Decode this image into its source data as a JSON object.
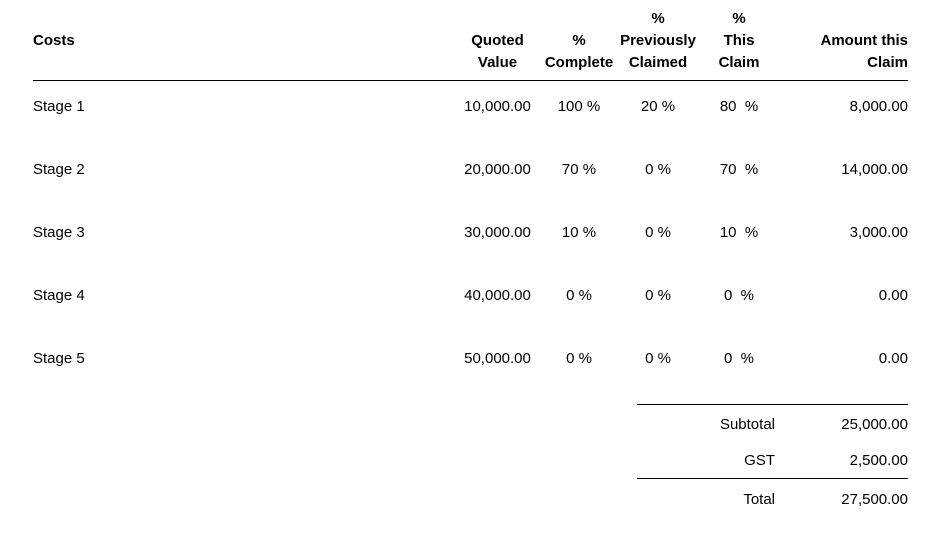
{
  "table": {
    "columns": {
      "costs": "Costs",
      "quoted_value": "Quoted\nValue",
      "pct_complete": "%\nComplete",
      "pct_previously_claimed": "%\nPreviously\nClaimed",
      "pct_this_claim": "%\nThis\nClaim",
      "amount_this_claim": "Amount this\nClaim"
    },
    "rows": [
      {
        "cost": "Stage 1",
        "quoted_value": "10,000.00",
        "pct_complete": "100 %",
        "pct_previously_claimed": "20 %",
        "pct_this_claim": "80  %",
        "amount_this_claim": "8,000.00"
      },
      {
        "cost": "Stage 2",
        "quoted_value": "20,000.00",
        "pct_complete": "70 %",
        "pct_previously_claimed": "0 %",
        "pct_this_claim": "70  %",
        "amount_this_claim": "14,000.00"
      },
      {
        "cost": "Stage 3",
        "quoted_value": "30,000.00",
        "pct_complete": "10 %",
        "pct_previously_claimed": "0 %",
        "pct_this_claim": "10  %",
        "amount_this_claim": "3,000.00"
      },
      {
        "cost": "Stage 4",
        "quoted_value": "40,000.00",
        "pct_complete": "0 %",
        "pct_previously_claimed": "0 %",
        "pct_this_claim": "0  %",
        "amount_this_claim": "0.00"
      },
      {
        "cost": "Stage 5",
        "quoted_value": "50,000.00",
        "pct_complete": "0 %",
        "pct_previously_claimed": "0 %",
        "pct_this_claim": "0  %",
        "amount_this_claim": "0.00"
      }
    ]
  },
  "totals": {
    "subtotal_label": "Subtotal",
    "subtotal_value": "25,000.00",
    "gst_label": "GST",
    "gst_value": "2,500.00",
    "total_label": "Total",
    "total_value": "27,500.00"
  }
}
